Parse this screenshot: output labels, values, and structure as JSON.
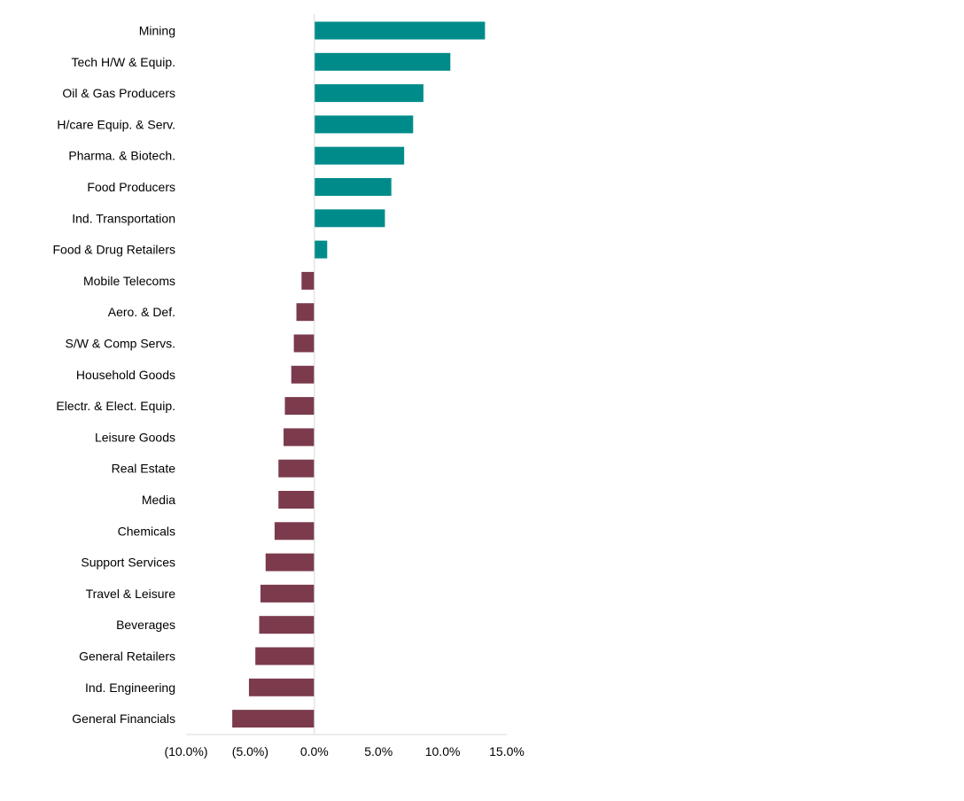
{
  "chart_data": {
    "type": "bar",
    "orientation": "horizontal",
    "categories": [
      "Mining",
      "Tech H/W & Equip.",
      "Oil & Gas Producers",
      "H/care Equip. & Serv.",
      "Pharma. & Biotech.",
      "Food Producers",
      "Ind. Transportation",
      "Food & Drug Retailers",
      "Mobile Telecoms",
      "Aero. & Def.",
      "S/W & Comp Servs.",
      "Household Goods",
      "Electr. & Elect. Equip.",
      "Leisure Goods",
      "Real Estate",
      "Media",
      "Chemicals",
      "Support Services",
      "Travel & Leisure",
      "Beverages",
      "General Retailers",
      "Ind. Engineering",
      "General Financials"
    ],
    "values": [
      13.3,
      10.6,
      8.5,
      7.7,
      7.0,
      6.0,
      5.5,
      1.0,
      -1.0,
      -1.4,
      -1.6,
      -1.8,
      -2.3,
      -2.4,
      -2.8,
      -2.8,
      -3.1,
      -3.8,
      -4.2,
      -4.3,
      -4.6,
      -5.1,
      -6.4
    ],
    "xlim": [
      -10,
      15
    ],
    "xticks": [
      "(10.0%)",
      "(5.0%)",
      "0.0%",
      "5.0%",
      "10.0%",
      "15.0%"
    ],
    "xtick_values": [
      -10,
      -5,
      0,
      5,
      10,
      15
    ],
    "grid": false,
    "colors": {
      "positive": "#008B8B",
      "negative": "#7B3B4C",
      "axis": "#D9D9D9"
    }
  }
}
